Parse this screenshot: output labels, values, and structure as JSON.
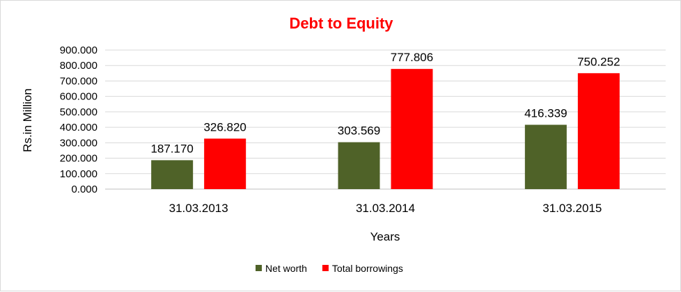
{
  "chart_data": {
    "type": "bar",
    "title": "Debt to Equity",
    "title_color": "#ff0000",
    "xlabel": "Years",
    "ylabel": "Rs.in Million",
    "categories": [
      "31.03.2013",
      "31.03.2014",
      "31.03.2015"
    ],
    "series": [
      {
        "name": "Net worth",
        "color": "#4f6228",
        "values": [
          187.17,
          303.569,
          416.339
        ],
        "labels": [
          "187.170",
          "303.569",
          "416.339"
        ]
      },
      {
        "name": "Total borrowings",
        "color": "#ff0000",
        "values": [
          326.82,
          777.806,
          750.252
        ],
        "labels": [
          "326.820",
          "777.806",
          "750.252"
        ]
      }
    ],
    "ylim": [
      0,
      900
    ],
    "yticks": [
      "0.000",
      "100.000",
      "200.000",
      "300.000",
      "400.000",
      "500.000",
      "600.000",
      "700.000",
      "800.000",
      "900.000"
    ],
    "grid": true,
    "legend_position": "bottom"
  }
}
